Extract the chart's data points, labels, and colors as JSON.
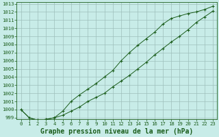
{
  "title": "Graphe pression niveau de la mer (hPa)",
  "line1_x": [
    0,
    1,
    2,
    3,
    4,
    5,
    6,
    7,
    8,
    9,
    10,
    11,
    12,
    13,
    14,
    15,
    16,
    17,
    18,
    19,
    20,
    21,
    22,
    23
  ],
  "line1_y": [
    1000.0,
    999.0,
    998.7,
    998.8,
    999.0,
    999.3,
    999.8,
    1000.3,
    1001.0,
    1001.5,
    1002.0,
    1002.8,
    1003.5,
    1004.2,
    1005.0,
    1005.8,
    1006.7,
    1007.5,
    1008.3,
    1009.0,
    1009.8,
    1010.7,
    1011.4,
    1012.1
  ],
  "line2_x": [
    0,
    1,
    2,
    3,
    4,
    5,
    6,
    7,
    8,
    9,
    10,
    11,
    12,
    13,
    14,
    15,
    16,
    17,
    18,
    19,
    20,
    21,
    22,
    23
  ],
  "line2_y": [
    1000.0,
    999.0,
    998.7,
    998.8,
    999.0,
    999.8,
    1001.0,
    1001.8,
    1002.5,
    1003.2,
    1004.0,
    1004.8,
    1006.0,
    1007.0,
    1007.9,
    1008.7,
    1009.5,
    1010.5,
    1011.2,
    1011.5,
    1011.8,
    1012.0,
    1012.3,
    1012.7
  ],
  "xlim_min": -0.5,
  "xlim_max": 23.5,
  "ylim_min": 998.8,
  "ylim_max": 1013.2,
  "yticks": [
    999,
    1000,
    1001,
    1002,
    1003,
    1004,
    1005,
    1006,
    1007,
    1008,
    1009,
    1010,
    1011,
    1012,
    1013
  ],
  "xticks": [
    0,
    1,
    2,
    3,
    4,
    5,
    6,
    7,
    8,
    9,
    10,
    11,
    12,
    13,
    14,
    15,
    16,
    17,
    18,
    19,
    20,
    21,
    22,
    23
  ],
  "line_color": "#1a5c1a",
  "marker": "+",
  "bg_color": "#c8ece8",
  "grid_color": "#9dbfbb",
  "tick_color": "#1a5c1a",
  "title_color": "#1a5c1a",
  "tick_fontsize": 5.2,
  "title_fontsize": 7.0
}
